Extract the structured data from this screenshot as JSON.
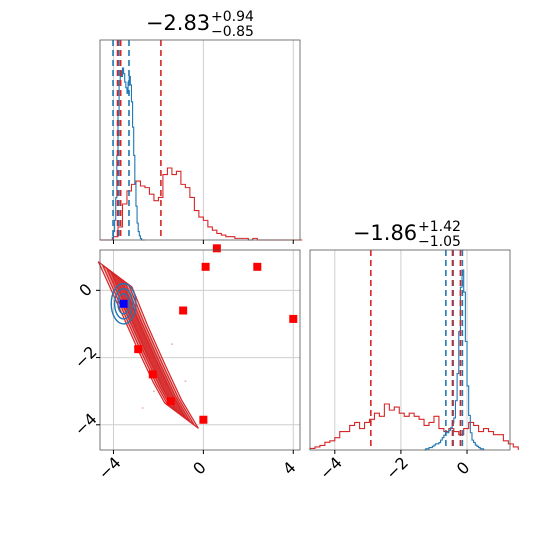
{
  "chart_data": {
    "type": "corner",
    "params": [
      {
        "title_main": "−2.83",
        "title_sup": "+0.94",
        "title_sub": "−0.85",
        "median": -2.83
      },
      {
        "title_main": "−1.86",
        "title_sup": "+1.42",
        "title_sub": "−1.05",
        "median": -1.86
      }
    ],
    "colors": {
      "red": "#d62728",
      "blue": "#1f77b4",
      "marker_red": "#ff0000",
      "marker_blue": "#0000ff"
    },
    "x_range_param1": [
      -4.6,
      4.3
    ],
    "y_range_param2": [
      -4.75,
      1.2
    ],
    "x_range_param2_hist": [
      -4.75,
      1.3
    ],
    "ticks_param1": [
      {
        "v": -4,
        "label": "−4"
      },
      {
        "v": 0,
        "label": "0"
      },
      {
        "v": 4,
        "label": "4"
      }
    ],
    "ticks_param2": [
      {
        "v": -4,
        "label": "−4"
      },
      {
        "v": -2,
        "label": "−2"
      },
      {
        "v": 0,
        "label": "0"
      }
    ],
    "grid": true,
    "hist1": {
      "red_bins_start": -4.6,
      "red_bin_width": 0.2,
      "red_counts": [
        0,
        0,
        0,
        2,
        8,
        22,
        30,
        34,
        36,
        33,
        32,
        28,
        24,
        26,
        40,
        44,
        40,
        42,
        34,
        32,
        26,
        18,
        14,
        12,
        8,
        6,
        4,
        3,
        2,
        2,
        1,
        1,
        1,
        0,
        1,
        0,
        0,
        0,
        0,
        0,
        0,
        0,
        0,
        0,
        0
      ],
      "blue_bins_start": -4.1,
      "blue_bin_width": 0.05,
      "blue_counts": [
        0,
        2,
        6,
        14,
        30,
        60,
        90,
        110,
        120,
        116,
        122,
        118,
        112,
        108,
        104,
        112,
        116,
        110,
        98,
        80,
        60,
        40,
        24,
        12,
        6,
        3,
        1,
        0,
        0,
        0
      ],
      "red_quantiles": [
        -3.82,
        -3.68,
        -1.89
      ],
      "blue_quantiles": [
        -4.02,
        -3.76,
        -3.31
      ]
    },
    "hist2": {
      "red_bins_start": -4.75,
      "red_bin_width": 0.15,
      "red_counts": [
        1,
        2,
        3,
        5,
        6,
        8,
        12,
        12,
        16,
        18,
        14,
        18,
        20,
        24,
        22,
        30,
        26,
        28,
        24,
        22,
        24,
        22,
        20,
        16,
        18,
        22,
        14,
        12,
        14,
        12,
        10,
        14,
        18,
        16,
        12,
        14,
        12,
        10,
        10,
        6,
        4,
        2
      ],
      "blue_bins_start": -1.3,
      "blue_bin_width": 0.05,
      "blue_counts": [
        0,
        1,
        1,
        2,
        2,
        3,
        4,
        5,
        5,
        6,
        8,
        10,
        12,
        14,
        14,
        16,
        18,
        22,
        26,
        40,
        62,
        96,
        132,
        146,
        128,
        88,
        52,
        28,
        14,
        8,
        6,
        4,
        3,
        2,
        1,
        1
      ],
      "red_quantiles": [
        -2.91,
        -0.44,
        -0.2
      ],
      "blue_quantiles": [
        -0.64,
        -0.42,
        -0.14
      ]
    },
    "red_markers": [
      {
        "x": 0.1,
        "y": 0.7
      },
      {
        "x": 2.4,
        "y": 0.7
      },
      {
        "x": 0.6,
        "y": 1.25
      },
      {
        "x": -0.9,
        "y": -0.6
      },
      {
        "x": 4.0,
        "y": -0.85
      },
      {
        "x": -2.9,
        "y": -1.75
      },
      {
        "x": -2.25,
        "y": -2.5
      },
      {
        "x": -1.45,
        "y": -3.3
      },
      {
        "x": 0.0,
        "y": -3.85
      }
    ],
    "blue_marker": {
      "x": -3.55,
      "y": -0.4
    }
  }
}
